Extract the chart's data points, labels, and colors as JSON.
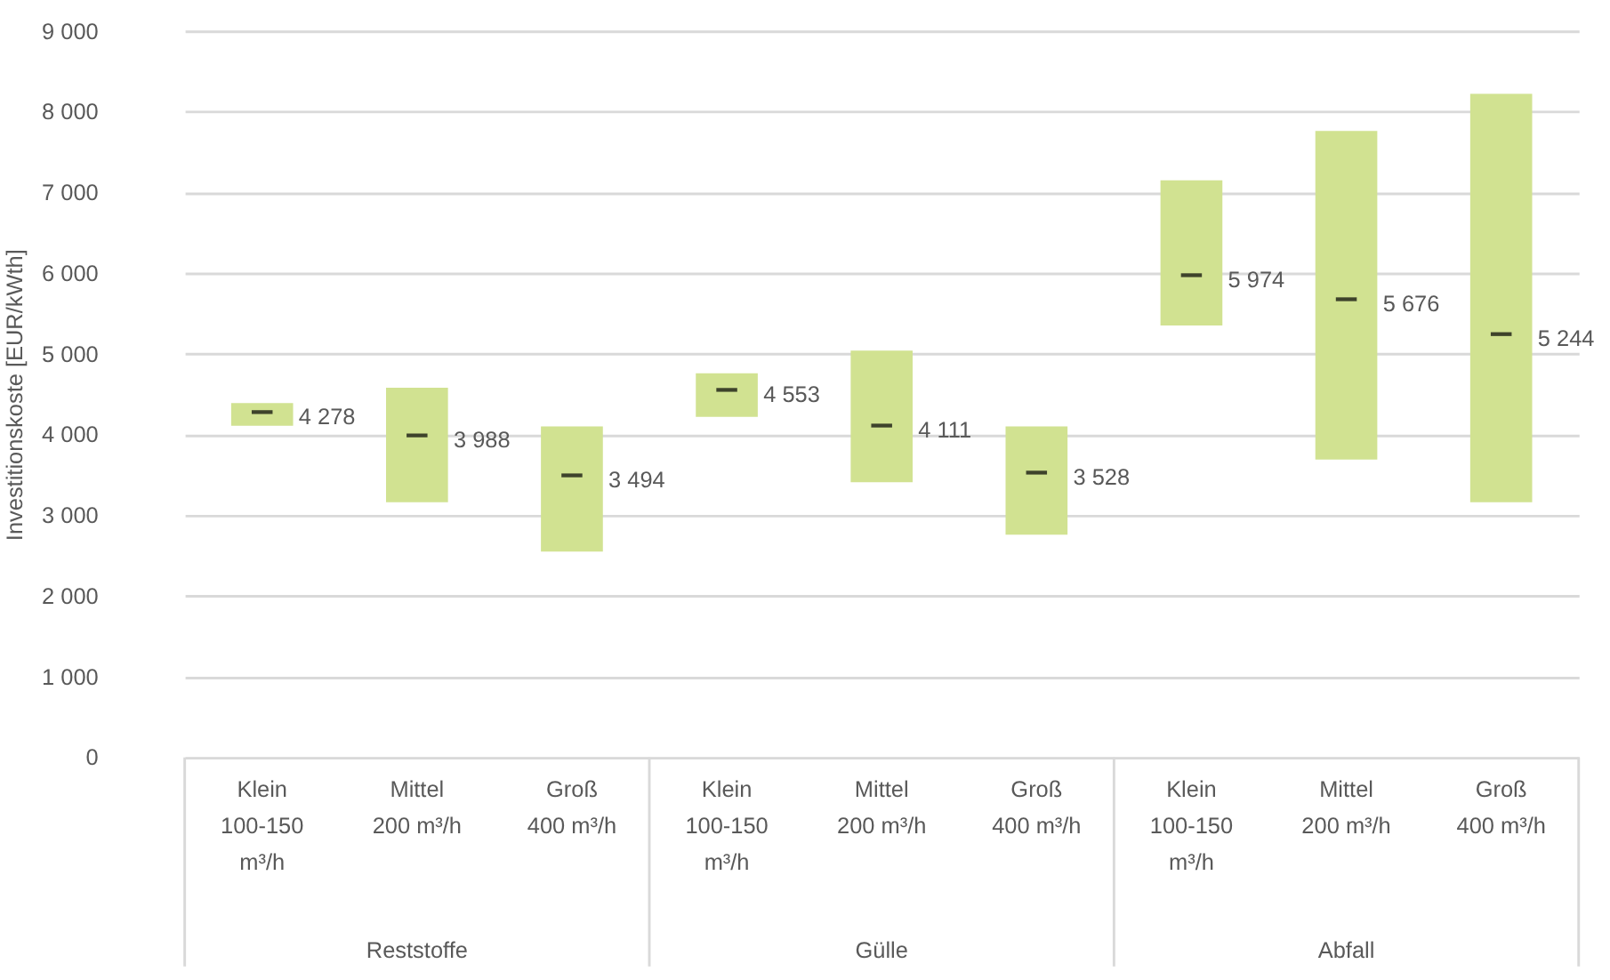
{
  "chart_data": {
    "type": "box",
    "ylabel": "Investitionskoste [EUR/kWth]",
    "categories": [
      "Klein\n100-150\nm³/h",
      "Mittel\n200 m³/h",
      "Groß\n400 m³/h",
      "Klein\n100-150\nm³/h",
      "Mittel\n200 m³/h",
      "Groß\n400 m³/h",
      "Klein\n100-150\nm³/h",
      "Mittel\n200 m³/h",
      "Groß\n400 m³/h"
    ],
    "annotations": [
      "Reststoffe",
      "Gülle",
      "Abfall"
    ],
    "ylim": [
      0,
      9000
    ],
    "yticks": [
      0,
      {
        "value": 1000,
        "label": "1 000"
      },
      {
        "value": 2000,
        "label": "2 000"
      },
      {
        "value": 3000,
        "label": "3 000"
      },
      {
        "value": 4000,
        "label": "4 000"
      },
      {
        "value": 5000,
        "label": "5 000"
      },
      {
        "value": 6000,
        "label": "6 000"
      },
      {
        "value": 7000,
        "label": "7 000"
      },
      {
        "value": 8000,
        "label": "8 000"
      },
      {
        "value": 9000,
        "label": "9 000"
      }
    ],
    "grid": "y",
    "series": [
      {
        "color": "#d1e291",
        "boxes": [
          {
            "low": 4110,
            "q1": 4110,
            "median": 4278,
            "q3": 4390,
            "high": 4390
          },
          {
            "low": 3160,
            "q1": 3160,
            "median": 3988,
            "q3": 4580,
            "high": 4580
          },
          {
            "low": 2550,
            "q1": 2550,
            "median": 3494,
            "q3": 4100,
            "high": 4100
          },
          {
            "low": 4220,
            "q1": 4220,
            "median": 4553,
            "q3": 4760,
            "high": 4760
          },
          {
            "low": 3410,
            "q1": 3410,
            "median": 4111,
            "q3": 5040,
            "high": 5040
          },
          {
            "low": 2760,
            "q1": 2760,
            "median": 3528,
            "q3": 4100,
            "high": 4100
          },
          {
            "low": 5350,
            "q1": 5350,
            "median": 5974,
            "q3": 7150,
            "high": 7150
          },
          {
            "low": 3690,
            "q1": 3690,
            "median": 5676,
            "q3": 7760,
            "high": 7760
          },
          {
            "low": 3160,
            "q1": 3160,
            "median": 5244,
            "q3": 8220,
            "high": 8220
          }
        ],
        "value_labels": [
          "4 278",
          "3 988",
          "3 494",
          "4 553",
          "4 111",
          "3 528",
          "5 974",
          "5 676",
          "5 244"
        ]
      }
    ]
  }
}
